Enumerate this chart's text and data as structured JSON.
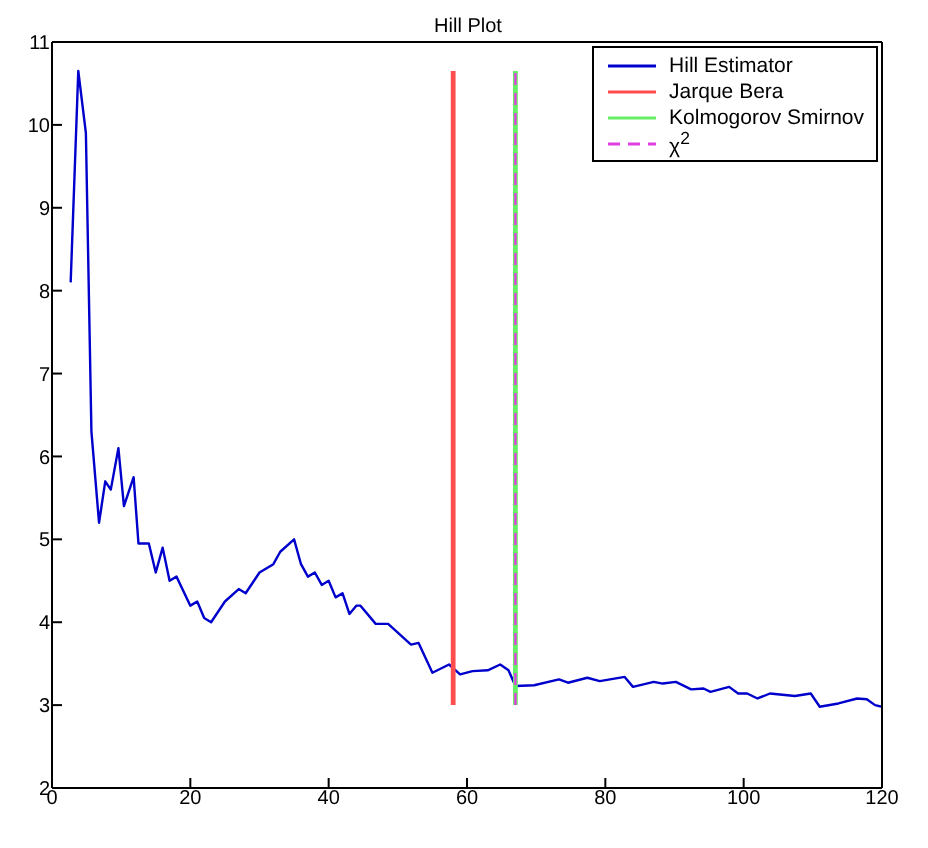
{
  "chart_data": {
    "type": "line",
    "title": "Hill Plot",
    "xlim": [
      0,
      120
    ],
    "xticks": [
      0,
      20,
      40,
      60,
      80,
      100,
      120
    ],
    "ylim": [
      2,
      11
    ],
    "yticks": [
      2,
      3,
      4,
      5,
      6,
      7,
      8,
      9,
      10,
      11
    ],
    "legend": "top right",
    "marker": "none",
    "series": [
      {
        "name": "Hill Estimator",
        "color": "#0000cc",
        "x": [
          2.7,
          3.8,
          4.9,
          5.7,
          6.8,
          7.7,
          8.5,
          9.6,
          10.4,
          11.8,
          12.5,
          14,
          15,
          16,
          17,
          18,
          20,
          21,
          22,
          23,
          25,
          27,
          28,
          30,
          32,
          33,
          35,
          36,
          37,
          38,
          39,
          40,
          41,
          42,
          43,
          44,
          44.6,
          46.8,
          48.6,
          51.9,
          53,
          55,
          57.4,
          59,
          60.8,
          63,
          64.8,
          66,
          67,
          69.7,
          73.3,
          74.6,
          77.4,
          79.2,
          82.8,
          84,
          87,
          88.3,
          90.2,
          92.4,
          94.2,
          95.2,
          97.9,
          99.2,
          100.5,
          102,
          103.8,
          107.4,
          109.7,
          111,
          113.7,
          116.4,
          117.8,
          119,
          120
        ],
        "values": [
          8.1,
          10.65,
          9.9,
          6.3,
          5.2,
          5.7,
          5.6,
          6.1,
          5.4,
          5.75,
          4.95,
          4.95,
          4.6,
          4.9,
          4.5,
          4.55,
          4.2,
          4.25,
          4.05,
          4.0,
          4.25,
          4.4,
          4.35,
          4.6,
          4.7,
          4.85,
          5.0,
          4.7,
          4.55,
          4.6,
          4.45,
          4.5,
          4.3,
          4.35,
          4.1,
          4.2,
          4.2,
          3.98,
          3.98,
          3.73,
          3.75,
          3.39,
          3.49,
          3.37,
          3.41,
          3.42,
          3.49,
          3.42,
          3.23,
          3.24,
          3.31,
          3.27,
          3.33,
          3.29,
          3.34,
          3.22,
          3.28,
          3.26,
          3.28,
          3.19,
          3.2,
          3.16,
          3.22,
          3.14,
          3.14,
          3.08,
          3.14,
          3.11,
          3.14,
          2.98,
          3.02,
          3.08,
          3.07,
          3.0,
          2.98
        ]
      },
      {
        "name": "Jarque Bera",
        "color": "#ff4d4d",
        "x": [
          58,
          58
        ],
        "values": [
          3,
          10.65
        ]
      },
      {
        "name": "Kolmogorov Smirnov",
        "color": "#66ee66",
        "x": [
          67,
          67
        ],
        "values": [
          3,
          10.65
        ]
      },
      {
        "name": "χ$^{2}$",
        "color": "#e040e0",
        "line_style": "dashed",
        "x": [
          67,
          67
        ],
        "values": [
          3,
          10.65
        ]
      }
    ]
  }
}
